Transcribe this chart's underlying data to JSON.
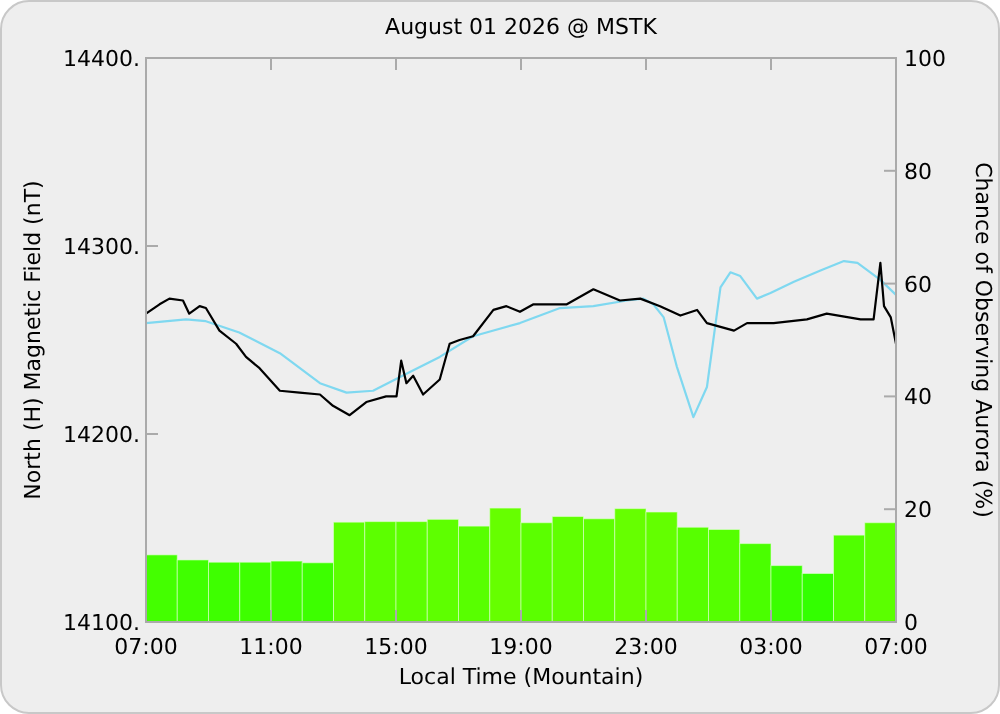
{
  "chart_data": {
    "type": "line",
    "title": "August 01 2026 @ MSTK",
    "xlabel": "Local Time (Mountain)",
    "ylabel": "North (H) Magnetic Field (nT)",
    "y2label": "Chance of Observing Aurora (%)",
    "xlim": [
      "2026-08-01T07:00",
      "2026-08-02T07:00"
    ],
    "xticks": [
      {
        "value": "2026-08-01T07:00",
        "label": "07:00"
      },
      {
        "value": "2026-08-01T11:00",
        "label": "11:00"
      },
      {
        "value": "2026-08-01T15:00",
        "label": "15:00"
      },
      {
        "value": "2026-08-01T19:00",
        "label": "19:00"
      },
      {
        "value": "2026-08-01T23:00",
        "label": "23:00"
      },
      {
        "value": "2026-08-02T03:00",
        "label": "03:00"
      },
      {
        "value": "2026-08-02T07:00",
        "label": "07:00"
      }
    ],
    "ylim": [
      14100,
      14400
    ],
    "yticks": [
      {
        "value": 14100,
        "label": "14100."
      },
      {
        "value": 14200,
        "label": "14200."
      },
      {
        "value": 14300,
        "label": "14300."
      },
      {
        "value": 14400,
        "label": "14400."
      }
    ],
    "y2lim": [
      0,
      100
    ],
    "y2ticks": [
      0,
      20,
      40,
      60,
      80,
      100
    ],
    "grid": false,
    "series": [
      {
        "type": "bar",
        "axis": "y2",
        "x": [
          "2026-08-01T07:30",
          "2026-08-01T08:30",
          "2026-08-01T09:30",
          "2026-08-01T10:30",
          "2026-08-01T11:30",
          "2026-08-01T12:30",
          "2026-08-01T13:30",
          "2026-08-01T14:30",
          "2026-08-01T15:30",
          "2026-08-01T16:30",
          "2026-08-01T17:30",
          "2026-08-01T18:30",
          "2026-08-01T19:30",
          "2026-08-01T20:30",
          "2026-08-01T21:30",
          "2026-08-01T22:30",
          "2026-08-01T23:30",
          "2026-08-02T00:30",
          "2026-08-02T01:30",
          "2026-08-02T02:30",
          "2026-08-02T03:30",
          "2026-08-02T04:30",
          "2026-08-02T05:30",
          "2026-08-02T06:30"
        ],
        "values": [
          11.9,
          11.0,
          10.6,
          10.6,
          10.8,
          10.5,
          17.7,
          17.8,
          17.8,
          18.2,
          17.0,
          20.2,
          17.6,
          18.7,
          18.3,
          20.1,
          19.5,
          16.8,
          16.4,
          13.9,
          10.0,
          8.6,
          15.4,
          17.6
        ],
        "colors": [
          "#44ff00",
          "#40ff00",
          "#3eff00",
          "#3eff00",
          "#3fff00",
          "#3dff00",
          "#5cff00",
          "#5cff00",
          "#5cff00",
          "#5eff00",
          "#58ff00",
          "#66ff00",
          "#5bff00",
          "#60ff00",
          "#5eff00",
          "#66ff00",
          "#63ff00",
          "#57ff00",
          "#55ff00",
          "#4aff00",
          "#3aff00",
          "#33ff00",
          "#50ff00",
          "#5bff00"
        ]
      },
      {
        "color": "#7fd8f0",
        "x": [
          "2026-08-01T07:00",
          "2026-08-01T08:17",
          "2026-08-01T08:55",
          "2026-08-01T09:59",
          "2026-08-01T11:17",
          "2026-08-01T12:34",
          "2026-08-01T13:25",
          "2026-08-01T14:16",
          "2026-08-01T15:20",
          "2026-08-01T16:24",
          "2026-08-01T17:28",
          "2026-08-01T18:58",
          "2026-08-01T20:15",
          "2026-08-01T21:19",
          "2026-08-01T22:23",
          "2026-08-01T22:55",
          "2026-08-01T23:14",
          "2026-08-01T23:34",
          "2026-08-01T23:59",
          "2026-08-02T00:31",
          "2026-08-02T00:57",
          "2026-08-02T01:23",
          "2026-08-02T01:42",
          "2026-08-02T02:01",
          "2026-08-02T02:33",
          "2026-08-02T02:59",
          "2026-08-02T03:44",
          "2026-08-02T04:35",
          "2026-08-02T05:20",
          "2026-08-02T05:46",
          "2026-08-02T06:30",
          "2026-08-02T07:00"
        ],
        "values": [
          14259,
          14261,
          14260,
          14254,
          14243,
          14227,
          14222,
          14223,
          14232,
          14241,
          14252,
          14259,
          14267,
          14268,
          14271,
          14272,
          14269,
          14262,
          14236,
          14209,
          14225,
          14278,
          14286,
          14284,
          14272,
          14275,
          14281,
          14287,
          14292,
          14291,
          14282,
          14274
        ]
      },
      {
        "color": "#000000",
        "x": [
          "2026-08-01T07:00",
          "2026-08-01T07:26",
          "2026-08-01T07:45",
          "2026-08-01T08:11",
          "2026-08-01T08:23",
          "2026-08-01T08:43",
          "2026-08-01T08:55",
          "2026-08-01T09:21",
          "2026-08-01T09:53",
          "2026-08-01T10:12",
          "2026-08-01T10:38",
          "2026-08-01T11:17",
          "2026-08-01T11:55",
          "2026-08-01T12:34",
          "2026-08-01T12:59",
          "2026-08-01T13:31",
          "2026-08-01T14:03",
          "2026-08-01T14:41",
          "2026-08-01T15:01",
          "2026-08-01T15:10",
          "2026-08-01T15:20",
          "2026-08-01T15:33",
          "2026-08-01T15:52",
          "2026-08-01T16:24",
          "2026-08-01T16:43",
          "2026-08-01T17:02",
          "2026-08-01T17:28",
          "2026-08-01T18:07",
          "2026-08-01T18:32",
          "2026-08-01T18:58",
          "2026-08-01T19:24",
          "2026-08-01T20:15",
          "2026-08-01T20:28",
          "2026-08-01T21:19",
          "2026-08-01T22:10",
          "2026-08-01T22:49",
          "2026-08-01T23:27",
          "2026-08-02T00:06",
          "2026-08-02T00:38",
          "2026-08-02T00:57",
          "2026-08-02T01:49",
          "2026-08-02T02:14",
          "2026-08-02T03:05",
          "2026-08-02T04:09",
          "2026-08-02T04:47",
          "2026-08-02T05:52",
          "2026-08-02T06:17",
          "2026-08-02T06:30",
          "2026-08-02T06:37",
          "2026-08-02T06:50",
          "2026-08-02T07:00"
        ],
        "values": [
          14264,
          14269,
          14272,
          14271,
          14264,
          14268,
          14267,
          14255,
          14248,
          14241,
          14235,
          14223,
          14222,
          14221,
          14215,
          14210,
          14217,
          14220,
          14220,
          14239,
          14227,
          14231,
          14221,
          14229,
          14248,
          14250,
          14252,
          14266,
          14268,
          14265,
          14269,
          14269,
          14269,
          14277,
          14271,
          14272,
          14268,
          14263,
          14266,
          14259,
          14255,
          14259,
          14259,
          14261,
          14264,
          14261,
          14261,
          14291,
          14268,
          14262,
          14248
        ]
      }
    ]
  }
}
